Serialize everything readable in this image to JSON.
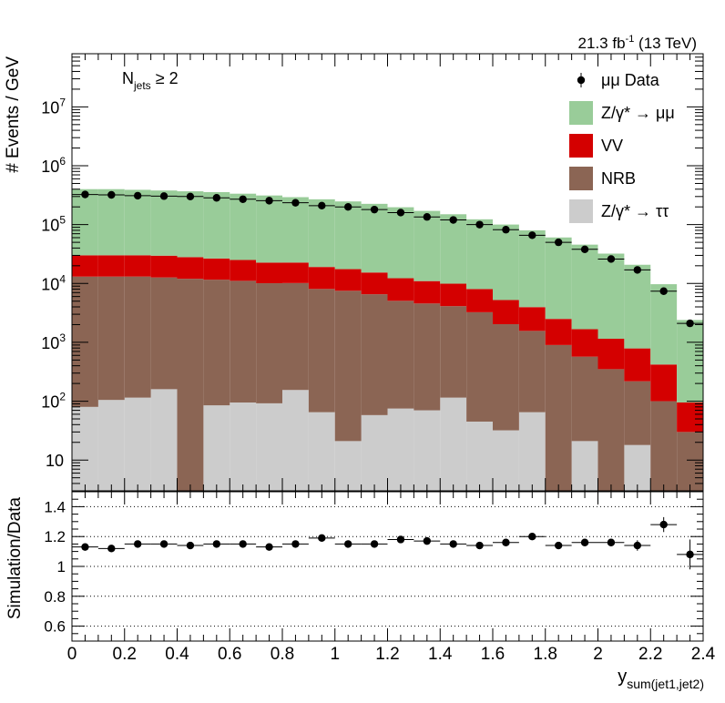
{
  "chart_data": [
    {
      "type": "bar",
      "stacked": true,
      "y_scale": "log",
      "ylim": [
        3,
        80000000
      ],
      "xlim": [
        0,
        2.4
      ],
      "ylabel": "# Events / GeV",
      "lumi_label": "21.3 fb",
      "lumi_exponent": "-1",
      "lumi_energy": " (13 TeV)",
      "selection": {
        "base": "N",
        "sub": "jets",
        "rest": " ≥ 2"
      },
      "legend_position": "top-right",
      "y_ticks_pow": [
        {
          "value": 10,
          "mantissa": "10",
          "exp": ""
        },
        {
          "value": 100,
          "mantissa": "10",
          "exp": "2"
        },
        {
          "value": 1000,
          "mantissa": "10",
          "exp": "3"
        },
        {
          "value": 10000,
          "mantissa": "10",
          "exp": "4"
        },
        {
          "value": 100000,
          "mantissa": "10",
          "exp": "5"
        },
        {
          "value": 1000000,
          "mantissa": "10",
          "exp": "6"
        },
        {
          "value": 10000000,
          "mantissa": "10",
          "exp": "7"
        }
      ],
      "bin_edges": [
        0,
        0.1,
        0.2,
        0.3,
        0.4,
        0.5,
        0.6,
        0.7,
        0.8,
        0.9,
        1.0,
        1.1,
        1.2,
        1.3,
        1.4,
        1.5,
        1.6,
        1.7,
        1.8,
        1.9,
        2.0,
        2.1,
        2.2,
        2.3,
        2.4
      ],
      "series": [
        {
          "name": "Z/γ* → ττ",
          "color": "#cccccc",
          "values": [
            80,
            105,
            115,
            160,
            0,
            85,
            95,
            92,
            155,
            65,
            21,
            58,
            75,
            70,
            115,
            45,
            32,
            65,
            0,
            21,
            0,
            18,
            0,
            0
          ]
        },
        {
          "name": "NRB",
          "color": "#8b6554",
          "values": [
            13000,
            13000,
            13000,
            12500,
            12000,
            11500,
            11000,
            10000,
            10000,
            8000,
            7500,
            6500,
            5000,
            4500,
            4000,
            3200,
            2000,
            1500,
            900,
            550,
            350,
            200,
            100,
            30
          ]
        },
        {
          "name": "VV",
          "color": "#d40000",
          "values": [
            17000,
            17000,
            17000,
            17000,
            16000,
            15000,
            14000,
            12500,
            12500,
            11000,
            10000,
            8800,
            7200,
            6400,
            5800,
            4800,
            3200,
            2400,
            1600,
            1100,
            800,
            570,
            320,
            65
          ]
        },
        {
          "name": "Z/γ* → μμ",
          "color": "#99cc99",
          "values": [
            370000,
            370000,
            360000,
            350000,
            340000,
            330000,
            310000,
            290000,
            270000,
            250000,
            230000,
            210000,
            185000,
            160000,
            140000,
            115000,
            95000,
            76000,
            58000,
            44000,
            31000,
            20000,
            9300,
            2300
          ]
        }
      ],
      "data": {
        "name": "μμ Data",
        "x": [
          0.05,
          0.15,
          0.25,
          0.35,
          0.45,
          0.55,
          0.65,
          0.75,
          0.85,
          0.95,
          1.05,
          1.15,
          1.25,
          1.35,
          1.45,
          1.55,
          1.65,
          1.75,
          1.85,
          1.95,
          2.05,
          2.15,
          2.25,
          2.35
        ],
        "y": [
          325000,
          320000,
          310000,
          305000,
          300000,
          285000,
          270000,
          255000,
          235000,
          210000,
          200000,
          180000,
          160000,
          135000,
          120000,
          100000,
          82000,
          66000,
          50000,
          38000,
          26000,
          17000,
          7400,
          2100
        ]
      },
      "legend_order": [
        "data",
        3,
        2,
        1,
        0
      ]
    },
    {
      "type": "scatter",
      "ylabel": "Simulation/Data",
      "ylim": [
        0.5,
        1.5
      ],
      "xlim": [
        0,
        2.4
      ],
      "xlabel_main": "y",
      "xlabel_sub": "sum(jet1,jet2)",
      "x_ticks": [
        0,
        0.2,
        0.4,
        0.6,
        0.8,
        1,
        1.2,
        1.4,
        1.6,
        1.8,
        2,
        2.2,
        2.4
      ],
      "x_tick_labels": [
        "0",
        "0.2",
        "0.4",
        "0.6",
        "0.8",
        "1",
        "1.2",
        "1.4",
        "1.6",
        "1.8",
        "2",
        "2.2",
        "2.4"
      ],
      "y_ticks": [
        0.6,
        0.8,
        1,
        1.2,
        1.4
      ],
      "y_tick_labels": [
        "0.6",
        "0.8",
        "1",
        "1.2",
        "1.4"
      ],
      "gridlines_y": [
        0.6,
        0.8,
        1.0,
        1.2,
        1.4
      ],
      "grid": "dotted horizontal",
      "x": [
        0.05,
        0.15,
        0.25,
        0.35,
        0.45,
        0.55,
        0.65,
        0.75,
        0.85,
        0.95,
        1.05,
        1.15,
        1.25,
        1.35,
        1.45,
        1.55,
        1.65,
        1.75,
        1.85,
        1.95,
        2.05,
        2.15,
        2.25,
        2.35
      ],
      "y": [
        1.13,
        1.12,
        1.15,
        1.15,
        1.14,
        1.15,
        1.15,
        1.13,
        1.15,
        1.19,
        1.15,
        1.15,
        1.18,
        1.17,
        1.15,
        1.14,
        1.16,
        1.2,
        1.14,
        1.16,
        1.16,
        1.14,
        1.28,
        1.08
      ],
      "yerr": [
        0.005,
        0.005,
        0.005,
        0.005,
        0.005,
        0.005,
        0.005,
        0.005,
        0.005,
        0.006,
        0.006,
        0.007,
        0.008,
        0.008,
        0.009,
        0.01,
        0.012,
        0.014,
        0.017,
        0.02,
        0.025,
        0.035,
        0.05,
        0.1
      ]
    }
  ]
}
